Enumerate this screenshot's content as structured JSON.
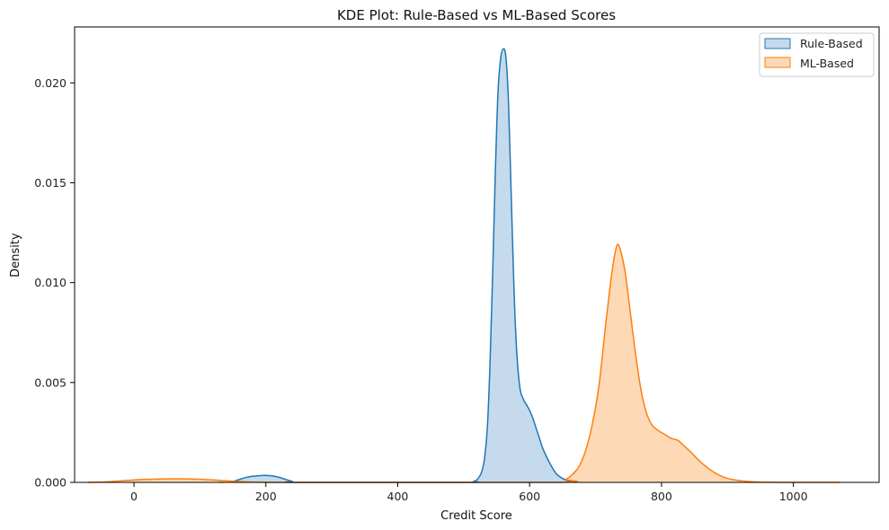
{
  "chart_data": {
    "type": "area",
    "title": "KDE Plot: Rule-Based vs ML-Based Scores",
    "xlabel": "Credit Score",
    "ylabel": "Density",
    "xlim": [
      -90,
      1130
    ],
    "ylim": [
      0,
      0.0228
    ],
    "xticks": [
      0,
      200,
      400,
      600,
      800,
      1000
    ],
    "xtick_labels": [
      "0",
      "200",
      "400",
      "600",
      "800",
      "1000"
    ],
    "yticks": [
      0,
      0.005,
      0.01,
      0.015,
      0.02
    ],
    "ytick_labels": [
      "0.000",
      "0.005",
      "0.010",
      "0.015",
      "0.020"
    ],
    "grid": false,
    "legend_position": "top-right",
    "series": [
      {
        "name": "Rule-Based",
        "color": "#1f77b4",
        "fill_color": "#c5daec",
        "x": [
          130,
          150,
          170,
          185,
          200,
          215,
          230,
          240,
          250,
          500,
          515,
          522,
          528,
          532,
          536,
          540,
          544,
          548,
          552,
          556,
          560,
          564,
          568,
          572,
          576,
          580,
          585,
          590,
          595,
          600,
          605,
          610,
          615,
          620,
          630,
          640,
          650,
          660,
          670
        ],
        "y": [
          0,
          5e-05,
          0.00025,
          0.00032,
          0.00035,
          0.0003,
          0.00015,
          5e-05,
          0,
          0,
          5e-05,
          0.0002,
          0.0006,
          0.0013,
          0.0028,
          0.006,
          0.0105,
          0.0155,
          0.0195,
          0.0212,
          0.0217,
          0.0213,
          0.019,
          0.0145,
          0.01,
          0.0068,
          0.0048,
          0.0042,
          0.0039,
          0.0036,
          0.0032,
          0.0027,
          0.0022,
          0.0017,
          0.001,
          0.00045,
          0.0002,
          5e-05,
          0
        ]
      },
      {
        "name": "ML-Based",
        "color": "#ff7f0e",
        "fill_color": "#fdd9b5",
        "x": [
          -70,
          -40,
          -10,
          20,
          60,
          100,
          130,
          160,
          190,
          260,
          640,
          655,
          665,
          675,
          685,
          695,
          705,
          715,
          722,
          728,
          733,
          738,
          745,
          752,
          760,
          768,
          776,
          785,
          795,
          805,
          815,
          825,
          835,
          845,
          860,
          880,
          900,
          930,
          960,
          1000,
          1070
        ],
        "y": [
          0,
          3e-05,
          0.0001,
          0.00015,
          0.00018,
          0.00016,
          0.0001,
          4e-05,
          1e-05,
          0,
          0,
          0.00015,
          0.0004,
          0.0008,
          0.0016,
          0.0029,
          0.0048,
          0.0078,
          0.0098,
          0.0112,
          0.0119,
          0.0116,
          0.0105,
          0.0087,
          0.0066,
          0.0048,
          0.0036,
          0.0029,
          0.0026,
          0.0024,
          0.0022,
          0.0021,
          0.0018,
          0.0015,
          0.001,
          0.0005,
          0.0002,
          5e-05,
          1e-05,
          0,
          0
        ]
      }
    ]
  }
}
